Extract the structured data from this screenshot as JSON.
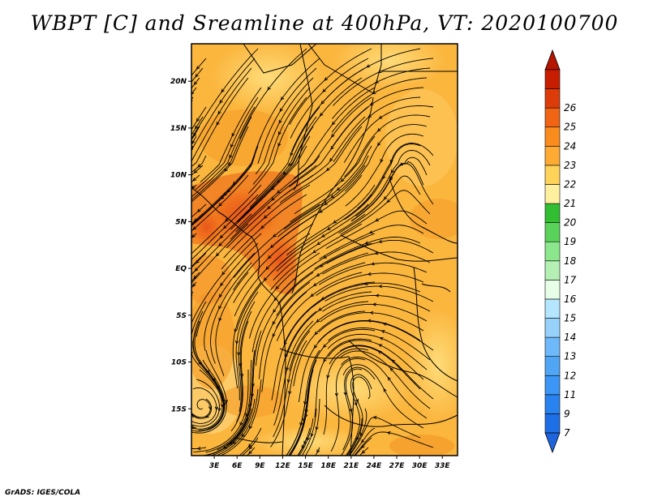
{
  "title": "WBPT [C] and Sreamline at 400hPa, VT: 2020100700",
  "credit": "GrADS: IGES/COLA",
  "map": {
    "lat_labels": [
      "20N",
      "15N",
      "10N",
      "5N",
      "EQ",
      "5S",
      "10S",
      "15S"
    ],
    "lat_values": [
      20,
      15,
      10,
      5,
      0,
      -5,
      -10,
      -15
    ],
    "lon_labels": [
      "3E",
      "6E",
      "9E",
      "12E",
      "15E",
      "18E",
      "21E",
      "24E",
      "27E",
      "30E",
      "33E"
    ],
    "lon_values": [
      3,
      6,
      9,
      12,
      15,
      18,
      21,
      24,
      27,
      30,
      33
    ],
    "lat_range": [
      -20,
      24
    ],
    "lon_range": [
      0,
      35
    ]
  },
  "colorbar": {
    "labels": [
      "7",
      "9",
      "11",
      "12",
      "13",
      "14",
      "15",
      "16",
      "17",
      "18",
      "19",
      "20",
      "21",
      "22",
      "23",
      "24",
      "25",
      "26"
    ],
    "colors": [
      "#1e6ee6",
      "#2882f0",
      "#3c96f5",
      "#50a5f5",
      "#6eb9fa",
      "#96d2fa",
      "#b4e6ff",
      "#e6ffe6",
      "#b4f0b4",
      "#8ce68c",
      "#5ad25a",
      "#32be32",
      "#fff0a0",
      "#ffd25a",
      "#ffaa32",
      "#fa8c1e",
      "#f06414",
      "#dc3c0a",
      "#c81e00"
    ],
    "min_color": "#1e64dc",
    "max_color": "#b41400"
  }
}
